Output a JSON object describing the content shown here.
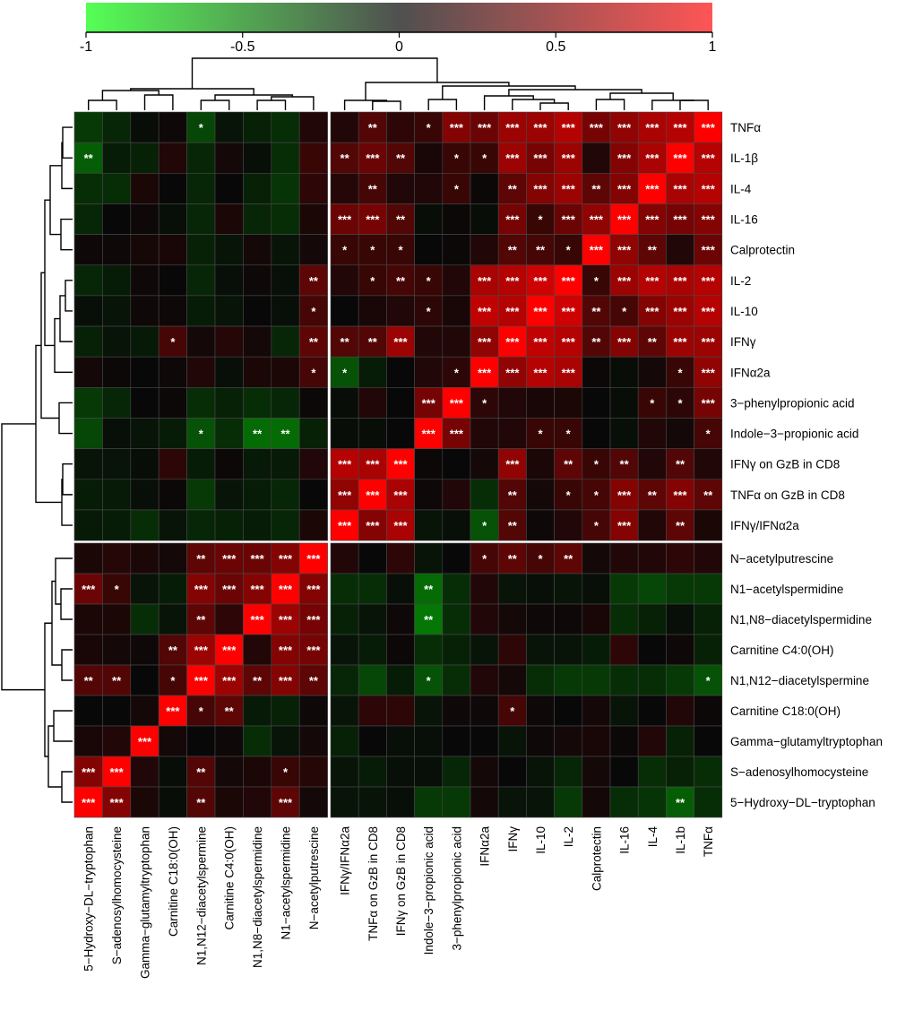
{
  "chart_data": {
    "type": "heatmap",
    "title": "",
    "xlabel": "",
    "ylabel": "",
    "value_range": [
      -1,
      1
    ],
    "colorbar": {
      "ticks": [
        -1,
        -0.5,
        0,
        0.5,
        1
      ],
      "tick_labels": [
        "-1",
        "-0.5",
        "0",
        "0.5",
        "1"
      ],
      "colors": {
        "low": "#55ff55",
        "mid": "#505050",
        "high": "#ff5555"
      },
      "placement": "top"
    },
    "cell_colors": {
      "low": "#00ff00",
      "mid": "#080808",
      "high": "#ff0000"
    },
    "dendrograms": {
      "rows": true,
      "columns": true
    },
    "columns": [
      "5−Hydroxy−DL−tryptophan",
      "S−adenosylhomocysteine",
      "Gamma−glutamyltryptophan",
      "Carnitine C18:0(OH)",
      "N1,N12−diacetylspermine",
      "Carnitine C4:0(OH)",
      "N1,N8−diacetylspermidine",
      "N1−acetylspermidine",
      "N−acetylputrescine",
      "IFNγ/IFNα2a",
      "TNFα on GzB in CD8",
      "IFNγ on GzB in CD8",
      "Indole−3−propionic acid",
      "3−phenylpropionic acid",
      "IFNα2a",
      "IFNγ",
      "IL-10",
      "IL-2",
      "Calprotectin",
      "IL-16",
      "IL-4",
      "IL-1b",
      "TNFα"
    ],
    "rows": [
      "TNFα",
      "IL-1β",
      "IL-4",
      "IL-16",
      "Calprotectin",
      "IL-2",
      "IL-10",
      "IFNγ",
      "IFNα2a",
      "3−phenylpropionic acid",
      "Indole−3−propionic acid",
      "IFNγ on GzB in CD8",
      "TNFα on GzB in CD8",
      "IFNγ/IFNα2a",
      "N−acetylputrescine",
      "N1−acetylspermidine",
      "N1,N8−diacetylspermidine",
      "Carnitine C4:0(OH)",
      "N1,N12−diacetylspermine",
      "Carnitine C18:0(OH)",
      "Gamma−glutamyltryptophan",
      "S−adenosylhomocysteine",
      "5−Hydroxy−DL−tryptophan"
    ],
    "values": [
      [
        -0.2,
        -0.12,
        -0.02,
        0.03,
        -0.25,
        -0.05,
        -0.1,
        -0.15,
        0.1,
        0.1,
        0.3,
        0.15,
        0.2,
        0.5,
        0.4,
        0.6,
        0.6,
        0.7,
        0.45,
        0.55,
        0.65,
        0.7,
        1.0
      ],
      [
        -0.35,
        -0.08,
        -0.1,
        0.1,
        -0.12,
        0.05,
        -0.03,
        -0.15,
        0.2,
        0.3,
        0.4,
        0.3,
        0.07,
        0.2,
        0.2,
        0.6,
        0.45,
        0.6,
        0.1,
        0.5,
        0.65,
        1.0,
        0.7
      ],
      [
        -0.15,
        -0.15,
        0.08,
        0.0,
        -0.12,
        0.0,
        -0.1,
        -0.18,
        0.15,
        0.12,
        0.25,
        0.1,
        0.1,
        0.2,
        0.02,
        0.35,
        0.5,
        0.6,
        0.35,
        0.5,
        1.0,
        0.65,
        0.7
      ],
      [
        -0.12,
        0.0,
        0.03,
        -0.03,
        -0.12,
        0.08,
        -0.12,
        -0.15,
        0.08,
        0.4,
        0.45,
        0.3,
        -0.02,
        0.02,
        -0.02,
        0.45,
        0.2,
        0.4,
        0.55,
        1.0,
        0.5,
        0.45,
        0.5
      ],
      [
        0.03,
        0.03,
        0.06,
        0.07,
        -0.1,
        -0.05,
        0.05,
        -0.05,
        0.05,
        0.2,
        0.2,
        0.2,
        0.0,
        0.02,
        0.1,
        0.3,
        0.25,
        0.2,
        1.0,
        0.55,
        0.35,
        0.1,
        0.4
      ],
      [
        -0.12,
        -0.08,
        0.03,
        0.0,
        -0.12,
        -0.03,
        0.03,
        -0.03,
        0.35,
        0.1,
        0.2,
        0.25,
        0.2,
        0.1,
        0.65,
        0.7,
        0.8,
        1.0,
        0.2,
        0.6,
        0.7,
        0.65,
        0.7
      ],
      [
        -0.03,
        -0.05,
        0.03,
        0.03,
        -0.08,
        -0.05,
        0.0,
        -0.03,
        0.25,
        0.0,
        0.07,
        0.1,
        0.15,
        0.07,
        0.75,
        0.7,
        1.0,
        0.8,
        0.3,
        0.25,
        0.5,
        0.6,
        0.7
      ],
      [
        -0.1,
        -0.05,
        -0.07,
        0.25,
        0.05,
        0.12,
        0.05,
        -0.12,
        0.35,
        0.3,
        0.3,
        0.6,
        0.1,
        0.1,
        0.55,
        1.0,
        0.75,
        0.7,
        0.3,
        0.5,
        0.35,
        0.6,
        0.6
      ],
      [
        0.05,
        0.02,
        0.0,
        0.03,
        0.1,
        -0.03,
        0.08,
        0.08,
        0.25,
        -0.3,
        -0.08,
        0.0,
        0.1,
        0.15,
        1.0,
        0.55,
        0.7,
        0.65,
        0.02,
        -0.02,
        0.05,
        0.2,
        0.55
      ],
      [
        -0.2,
        -0.12,
        0.0,
        0.02,
        -0.15,
        -0.1,
        -0.15,
        -0.12,
        0.02,
        -0.02,
        0.1,
        0.0,
        0.45,
        1.0,
        0.15,
        0.1,
        0.07,
        0.08,
        0.0,
        -0.02,
        0.2,
        0.15,
        0.45
      ],
      [
        -0.25,
        -0.03,
        -0.05,
        -0.08,
        -0.3,
        -0.15,
        -0.4,
        -0.4,
        -0.1,
        -0.02,
        -0.02,
        0.0,
        1.0,
        0.45,
        0.1,
        0.1,
        0.2,
        0.2,
        0.0,
        -0.03,
        0.1,
        0.05,
        0.25
      ],
      [
        -0.05,
        -0.05,
        -0.02,
        0.15,
        -0.08,
        0.02,
        -0.07,
        -0.07,
        0.1,
        0.7,
        0.65,
        1.0,
        0.02,
        0.0,
        0.05,
        0.55,
        0.08,
        0.35,
        0.2,
        0.3,
        0.1,
        0.3,
        0.1
      ],
      [
        -0.08,
        -0.07,
        -0.03,
        0.02,
        -0.2,
        -0.05,
        -0.08,
        -0.12,
        0.0,
        0.55,
        1.0,
        0.65,
        0.03,
        0.1,
        -0.15,
        0.3,
        0.05,
        0.2,
        0.25,
        0.5,
        0.35,
        0.5,
        0.35
      ],
      [
        -0.07,
        -0.08,
        -0.15,
        -0.05,
        -0.12,
        -0.1,
        -0.08,
        -0.12,
        0.08,
        1.0,
        0.5,
        0.65,
        -0.05,
        -0.03,
        -0.3,
        0.3,
        0.03,
        0.1,
        0.25,
        0.5,
        0.1,
        0.35,
        0.08
      ],
      [
        0.08,
        0.12,
        0.08,
        0.05,
        0.35,
        0.4,
        0.4,
        0.5,
        1.0,
        0.1,
        0.0,
        0.15,
        -0.05,
        0.0,
        0.25,
        0.35,
        0.25,
        0.35,
        0.05,
        0.1,
        0.1,
        0.15,
        0.1
      ],
      [
        0.4,
        0.2,
        -0.05,
        -0.08,
        0.5,
        0.4,
        0.5,
        1.0,
        0.5,
        -0.15,
        -0.15,
        -0.03,
        -0.4,
        -0.15,
        0.1,
        -0.05,
        -0.03,
        -0.05,
        -0.03,
        -0.2,
        -0.25,
        -0.2,
        -0.2
      ],
      [
        0.08,
        0.08,
        -0.15,
        -0.05,
        0.35,
        0.15,
        1.0,
        0.6,
        0.45,
        -0.1,
        -0.05,
        0.03,
        -0.45,
        -0.15,
        0.1,
        0.05,
        0.03,
        0.03,
        0.07,
        -0.15,
        -0.1,
        -0.03,
        -0.1
      ],
      [
        0.07,
        0.05,
        0.03,
        0.3,
        0.6,
        1.0,
        0.1,
        0.5,
        0.45,
        -0.05,
        -0.08,
        0.02,
        -0.15,
        -0.1,
        -0.05,
        0.15,
        -0.05,
        -0.05,
        -0.08,
        0.15,
        0.0,
        0.03,
        -0.1
      ],
      [
        0.3,
        0.3,
        0.0,
        0.25,
        1.0,
        0.6,
        0.35,
        0.5,
        0.35,
        -0.12,
        -0.25,
        -0.08,
        -0.3,
        -0.15,
        0.1,
        0.05,
        -0.15,
        -0.2,
        -0.2,
        -0.15,
        -0.15,
        -0.2,
        -0.3
      ],
      [
        0.0,
        0.0,
        0.05,
        1.0,
        0.25,
        0.35,
        -0.07,
        -0.1,
        0.03,
        -0.05,
        0.15,
        0.15,
        -0.05,
        0.03,
        0.03,
        0.25,
        0.03,
        0.0,
        0.05,
        -0.05,
        0.0,
        0.1,
        0.02
      ],
      [
        0.07,
        0.1,
        1.0,
        0.05,
        0.0,
        0.03,
        -0.15,
        -0.05,
        0.05,
        -0.1,
        0.0,
        -0.03,
        -0.03,
        0.0,
        0.0,
        -0.05,
        0.03,
        0.05,
        0.07,
        0.02,
        0.1,
        -0.1,
        0.0
      ],
      [
        0.5,
        1.0,
        0.1,
        -0.02,
        0.3,
        0.05,
        0.08,
        0.2,
        0.12,
        -0.05,
        -0.08,
        -0.03,
        -0.03,
        -0.12,
        0.05,
        0.0,
        -0.05,
        -0.12,
        0.05,
        0.0,
        -0.15,
        -0.1,
        -0.15
      ],
      [
        1.0,
        0.5,
        0.08,
        -0.02,
        0.3,
        0.08,
        0.1,
        0.35,
        0.05,
        -0.05,
        -0.05,
        -0.03,
        -0.2,
        -0.2,
        0.05,
        -0.05,
        -0.05,
        -0.2,
        0.05,
        -0.15,
        -0.18,
        -0.35,
        -0.15
      ]
    ],
    "significance": [
      [
        "",
        "",
        "",
        "",
        "*",
        "",
        "",
        "",
        "",
        "",
        "**",
        "",
        "*",
        "***",
        "***",
        "***",
        "***",
        "***",
        "***",
        "***",
        "***",
        "***",
        "***"
      ],
      [
        "**",
        "",
        "",
        "",
        "",
        "",
        "",
        "",
        "",
        "**",
        "***",
        "**",
        "",
        "*",
        "*",
        "***",
        "***",
        "***",
        "",
        "***",
        "***",
        "***",
        "***"
      ],
      [
        "",
        "",
        "",
        "",
        "",
        "",
        "",
        "",
        "",
        "",
        "**",
        "",
        "",
        "*",
        "",
        "**",
        "***",
        "***",
        "**",
        "***",
        "***",
        "***",
        "***"
      ],
      [
        "",
        "",
        "",
        "",
        "",
        "",
        "",
        "",
        "",
        "***",
        "***",
        "**",
        "",
        "",
        "",
        "***",
        "*",
        "***",
        "***",
        "***",
        "***",
        "***",
        "***"
      ],
      [
        "",
        "",
        "",
        "",
        "",
        "",
        "",
        "",
        "",
        "*",
        "*",
        "*",
        "",
        "",
        "",
        "**",
        "**",
        "*",
        "***",
        "***",
        "**",
        "",
        "***"
      ],
      [
        "",
        "",
        "",
        "",
        "",
        "",
        "",
        "",
        "**",
        "",
        "*",
        "**",
        "*",
        "",
        "***",
        "***",
        "***",
        "***",
        "*",
        "***",
        "***",
        "***",
        "***"
      ],
      [
        "",
        "",
        "",
        "",
        "",
        "",
        "",
        "",
        "*",
        "",
        "",
        "",
        "*",
        "",
        "***",
        "***",
        "***",
        "***",
        "**",
        "*",
        "***",
        "***",
        "***"
      ],
      [
        "",
        "",
        "",
        "*",
        "",
        "",
        "",
        "",
        "**",
        "**",
        "**",
        "***",
        "",
        "",
        "***",
        "***",
        "***",
        "***",
        "**",
        "***",
        "**",
        "***",
        "***"
      ],
      [
        "",
        "",
        "",
        "",
        "",
        "",
        "",
        "",
        "*",
        "*",
        "",
        "",
        "",
        "*",
        "***",
        "***",
        "***",
        "***",
        "",
        "",
        "",
        "*",
        "***"
      ],
      [
        "",
        "",
        "",
        "",
        "",
        "",
        "",
        "",
        "",
        "",
        "",
        "",
        "***",
        "***",
        "*",
        "",
        "",
        "",
        "",
        "",
        "*",
        "*",
        "***"
      ],
      [
        "",
        "",
        "",
        "",
        "*",
        "",
        "**",
        "**",
        "",
        "",
        "",
        "",
        "***",
        "***",
        "",
        "",
        "*",
        "*",
        "",
        "",
        "",
        "",
        "*"
      ],
      [
        "",
        "",
        "",
        "",
        "",
        "",
        "",
        "",
        "",
        "***",
        "***",
        "***",
        "",
        "",
        "",
        "***",
        "",
        "**",
        "*",
        "**",
        "",
        "**",
        ""
      ],
      [
        "",
        "",
        "",
        "",
        "",
        "",
        "",
        "",
        "",
        "***",
        "***",
        "***",
        "",
        "",
        "",
        "**",
        "",
        "*",
        "*",
        "***",
        "**",
        "***",
        "**"
      ],
      [
        "",
        "",
        "",
        "",
        "",
        "",
        "",
        "",
        "",
        "***",
        "***",
        "***",
        "",
        "",
        "*",
        "**",
        "",
        "",
        "*",
        "***",
        "",
        "**",
        ""
      ],
      [
        "",
        "",
        "",
        "",
        "**",
        "***",
        "***",
        "***",
        "***",
        "",
        "",
        "",
        "",
        "",
        "*",
        "**",
        "*",
        "**",
        "",
        "",
        "",
        "",
        ""
      ],
      [
        "***",
        "*",
        "",
        "",
        "***",
        "***",
        "***",
        "***",
        "***",
        "",
        "",
        "",
        "**",
        "",
        "",
        "",
        "",
        "",
        "",
        "",
        "",
        "",
        ""
      ],
      [
        "",
        "",
        "",
        "",
        "**",
        "",
        "***",
        "***",
        "***",
        "",
        "",
        "",
        "**",
        "",
        "",
        "",
        "",
        "",
        "",
        "",
        "",
        "",
        ""
      ],
      [
        "",
        "",
        "",
        "**",
        "***",
        "***",
        "",
        "***",
        "***",
        "",
        "",
        "",
        "",
        "",
        "",
        "",
        "",
        "",
        "",
        "",
        "",
        "",
        ""
      ],
      [
        "**",
        "**",
        "",
        "*",
        "***",
        "***",
        "**",
        "***",
        "**",
        "",
        "",
        "",
        "*",
        "",
        "",
        "",
        "",
        "",
        "",
        "",
        "",
        "",
        "*"
      ],
      [
        "",
        "",
        "",
        "***",
        "*",
        "**",
        "",
        "",
        "",
        "",
        "",
        "",
        "",
        "",
        "",
        "*",
        "",
        "",
        "",
        "",
        "",
        "",
        ""
      ],
      [
        "",
        "",
        "***",
        "",
        "",
        "",
        "",
        "",
        "",
        "",
        "",
        "",
        "",
        "",
        "",
        "",
        "",
        "",
        "",
        "",
        "",
        "",
        ""
      ],
      [
        "***",
        "***",
        "",
        "",
        "**",
        "",
        "",
        "*",
        "",
        "",
        "",
        "",
        "",
        "",
        "",
        "",
        "",
        "",
        "",
        "",
        "",
        "",
        ""
      ],
      [
        "***",
        "***",
        "",
        "",
        "**",
        "",
        "",
        "***",
        "",
        "",
        "",
        "",
        "",
        "",
        "",
        "",
        "",
        "",
        "",
        "",
        "",
        "**",
        ""
      ]
    ]
  }
}
